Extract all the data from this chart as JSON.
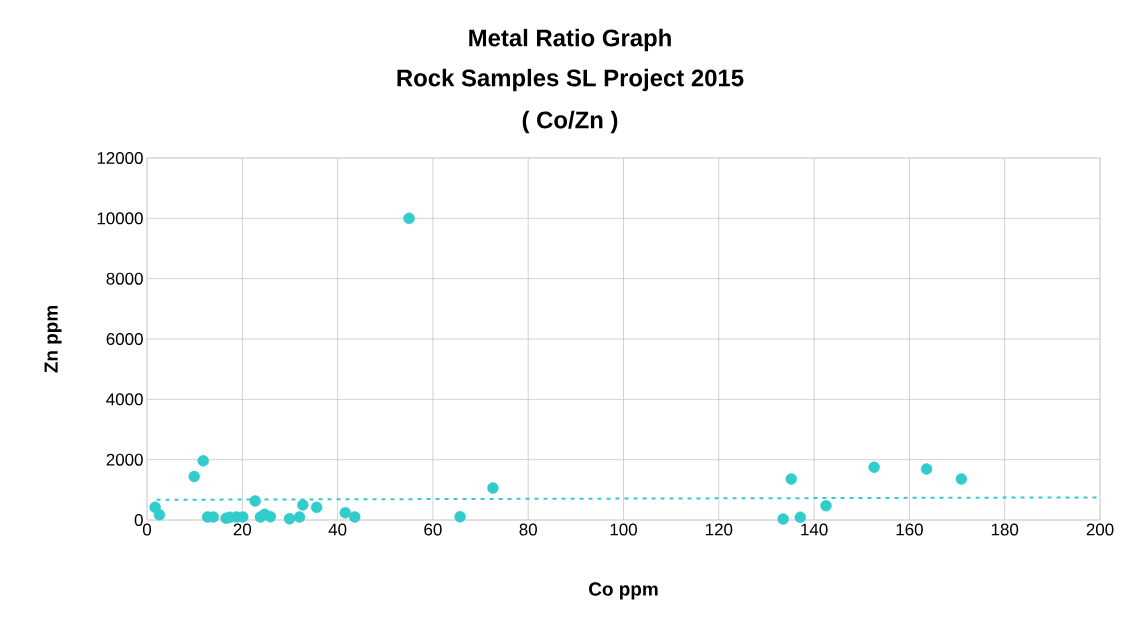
{
  "chart_data": {
    "type": "scatter",
    "title": "Metal Ratio Graph",
    "subtitle": "Rock Samples SL Project 2015",
    "annotations": [
      "( Co/Zn )"
    ],
    "xlabel": "Co ppm",
    "ylabel": "Zn ppm",
    "xlim": [
      0,
      200
    ],
    "ylim": [
      0,
      12000
    ],
    "xticks": [
      0,
      20,
      40,
      60,
      80,
      100,
      120,
      140,
      160,
      180,
      200
    ],
    "yticks": [
      0,
      2000,
      4000,
      6000,
      8000,
      10000,
      12000
    ],
    "grid": true,
    "series": [
      {
        "type": "scatter",
        "color": "#33cccc",
        "marker": "circle",
        "x": [
          1.7,
          2.6,
          9.9,
          11.8,
          12.7,
          13.9,
          16.6,
          17.4,
          18.8,
          20.1,
          22.7,
          23.8,
          24.7,
          25.9,
          29.9,
          32.0,
          32.7,
          35.6,
          41.6,
          43.6,
          55,
          65.7,
          72.6,
          133.5,
          135.2,
          137.1,
          142.5,
          152.6,
          163.6,
          170.9
        ],
        "values": [
          420,
          170,
          1440,
          1960,
          100,
          100,
          60,
          90,
          100,
          100,
          630,
          100,
          190,
          110,
          40,
          100,
          500,
          420,
          240,
          100,
          10000,
          110,
          1060,
          30,
          1360,
          90,
          470,
          1750,
          1690,
          1360
        ]
      },
      {
        "type": "line",
        "color": "#33cccc",
        "marker": "none",
        "line_style": "dotted",
        "x": [
          2,
          200
        ],
        "values": [
          670,
          750
        ]
      }
    ]
  }
}
